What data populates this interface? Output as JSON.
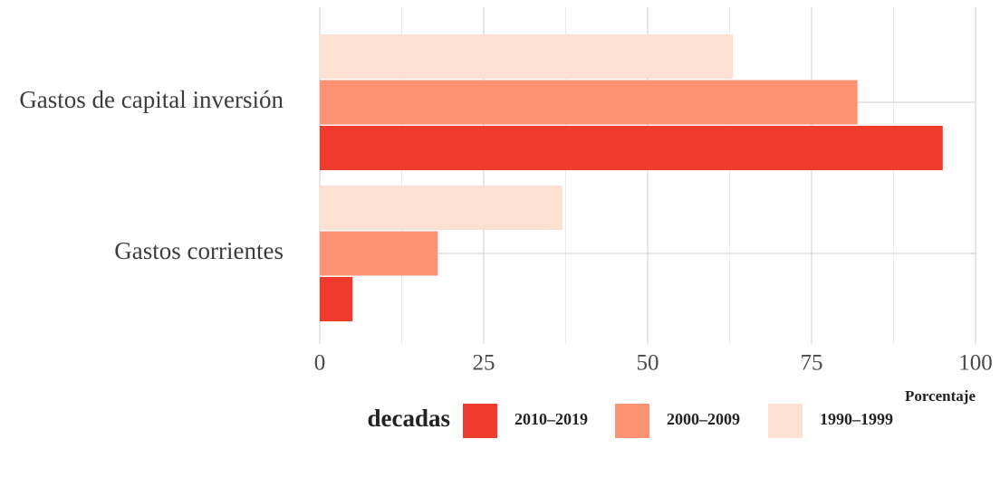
{
  "chart_data": {
    "type": "bar",
    "orientation": "horizontal",
    "categories": [
      "Gastos de capital inversión",
      "Gastos corrientes"
    ],
    "series": [
      {
        "name": "1990–1999",
        "color": "#fce0d2",
        "values": [
          63,
          37
        ]
      },
      {
        "name": "2000–2009",
        "color": "#fc9272",
        "values": [
          82,
          18
        ]
      },
      {
        "name": "2010–2019",
        "color": "#ef3b2c",
        "values": [
          95,
          5
        ]
      }
    ],
    "xlabel": "Porcentaje",
    "ylabel": "",
    "xlim": [
      0,
      100
    ],
    "xticks": [
      0,
      25,
      50,
      75,
      100
    ],
    "tick_labels": [
      "0",
      "25",
      "50",
      "75",
      "100"
    ],
    "grid": true,
    "legend": {
      "title": "decadas",
      "position": "bottom",
      "order": [
        "2010–2019",
        "2000–2009",
        "1990–1999"
      ]
    }
  }
}
